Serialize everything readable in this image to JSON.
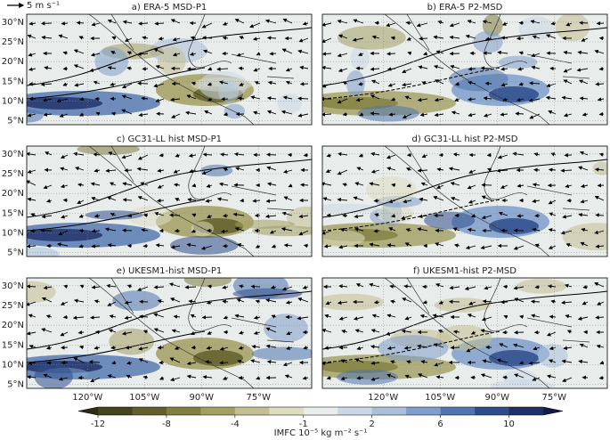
{
  "reference_vector": {
    "label": "5 m s⁻¹"
  },
  "panels": [
    {
      "title": "a)  ERA-5 MSD-P1"
    },
    {
      "title": "b)  ERA-5 P2-MSD"
    },
    {
      "title": "c)  GC31-LL hist MSD-P1"
    },
    {
      "title": "d)  GC31-LL hist P2-MSD"
    },
    {
      "title": "e)  UKESM1-hist MSD-P1"
    },
    {
      "title": "f)  UKESM1-hist P2-MSD"
    }
  ],
  "lon_range": [
    -136,
    -61
  ],
  "lat_range": [
    4,
    32
  ],
  "lon_ticks": [
    {
      "value": -120,
      "label": "120°W"
    },
    {
      "value": -105,
      "label": "105°W"
    },
    {
      "value": -90,
      "label": "90°W"
    },
    {
      "value": -75,
      "label": "75°W"
    }
  ],
  "lat_ticks": [
    {
      "value": 5,
      "label": "5°N"
    },
    {
      "value": 10,
      "label": "10°N"
    },
    {
      "value": 15,
      "label": "15°N"
    },
    {
      "value": 20,
      "label": "20°N"
    },
    {
      "value": 25,
      "label": "25°N"
    },
    {
      "value": 30,
      "label": "30°N"
    }
  ],
  "colorbar": {
    "label": "IMFC 10⁻⁵ kg m⁻² s⁻¹",
    "levels": [
      -12,
      -10,
      -8,
      -6,
      -4,
      -2,
      -1,
      1,
      2,
      4,
      6,
      8,
      10,
      12
    ],
    "ticks": [
      -12,
      -8,
      -4,
      -1,
      2,
      6,
      10
    ],
    "colors": [
      "#45431a",
      "#615f2a",
      "#817e3f",
      "#a29f62",
      "#c2c08f",
      "#dddcbf",
      "#e8ecea",
      "#cbd7e6",
      "#a9bfdb",
      "#7e9fcb",
      "#4f74af",
      "#2d4c8c",
      "#1e3066"
    ],
    "extend_colors": [
      "#2e2c0e",
      "#121a45"
    ]
  }
}
